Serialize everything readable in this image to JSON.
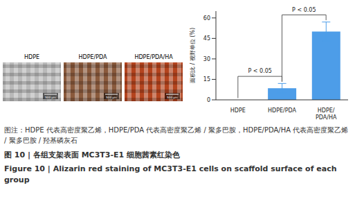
{
  "panels": [
    {
      "label": "HDPE",
      "scale_bar": "500 μm",
      "color": "#b9b9b9"
    },
    {
      "label": "HDPE/PDA",
      "scale_bar": "500 μm",
      "color": "#8a5a3c"
    },
    {
      "label": "HDPE/PDA/HA",
      "scale_bar": "500 μm",
      "color": "#b4441e"
    }
  ],
  "chart_data": {
    "type": "bar",
    "y_label": "面积比 / 视野单位 (%)",
    "categories": [
      "HDPE",
      "HDPE/PDA",
      "HDPE/PDA/HA"
    ],
    "values": [
      0,
      8.5,
      50
    ],
    "errors": [
      0,
      3.5,
      7
    ],
    "color": "#4d9de8",
    "ylim": [
      0,
      65
    ],
    "yticks": [
      0,
      15,
      30,
      45,
      60
    ],
    "annotations": [
      {
        "text": "P < 0.05",
        "from": "HDPE",
        "to": "HDPE/PDA"
      },
      {
        "text": "P < 0.05",
        "from": "HDPE/PDA",
        "to": "HDPE/PDA/HA"
      }
    ]
  },
  "caption": {
    "note": "图注：HDPE 代表高密度聚乙烯，HDPE/PDA 代表高密度聚乙烯 / 聚多巴胺，HDPE/PDA/HA 代表高密度聚乙烯 / 聚多巴胺 / 羟基磷灰石",
    "title_zh": "图 10 | 各组支架表面 MC3T3-E1 细胞茜素红染色",
    "title_en": "Figure 10 | Alizarin red staining of MC3T3-E1 cells on scaffold surface of each group"
  }
}
